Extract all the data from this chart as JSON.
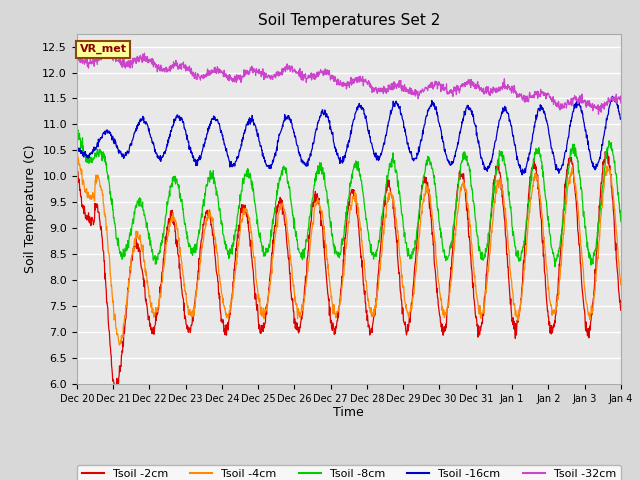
{
  "title": "Soil Temperatures Set 2",
  "xlabel": "Time",
  "ylabel": "Soil Temperature (C)",
  "ylim": [
    6.0,
    12.75
  ],
  "yticks": [
    6.0,
    6.5,
    7.0,
    7.5,
    8.0,
    8.5,
    9.0,
    9.5,
    10.0,
    10.5,
    11.0,
    11.5,
    12.0,
    12.5
  ],
  "bg_color": "#d8d8d8",
  "plot_bg_color": "#e8e8e8",
  "legend_label": "VR_met",
  "legend_bg": "#ffff99",
  "legend_border": "#8B4513",
  "series_colors": {
    "2cm": "#dd0000",
    "4cm": "#ff8800",
    "8cm": "#00cc00",
    "16cm": "#0000cc",
    "32cm": "#cc44cc"
  },
  "series_labels": {
    "2cm": "Tsoil -2cm",
    "4cm": "Tsoil -4cm",
    "8cm": "Tsoil -8cm",
    "16cm": "Tsoil -16cm",
    "32cm": "Tsoil -32cm"
  },
  "x_tick_labels": [
    "Dec 20",
    "Dec 21",
    "Dec 22",
    "Dec 23",
    "Dec 24",
    "Dec 25",
    "Dec 26",
    "Dec 27",
    "Dec 28",
    "Dec 29",
    "Dec 30",
    "Dec 31",
    "Jan 1",
    "Jan 2",
    "Jan 3",
    "Jan 4"
  ],
  "n_days": 15
}
